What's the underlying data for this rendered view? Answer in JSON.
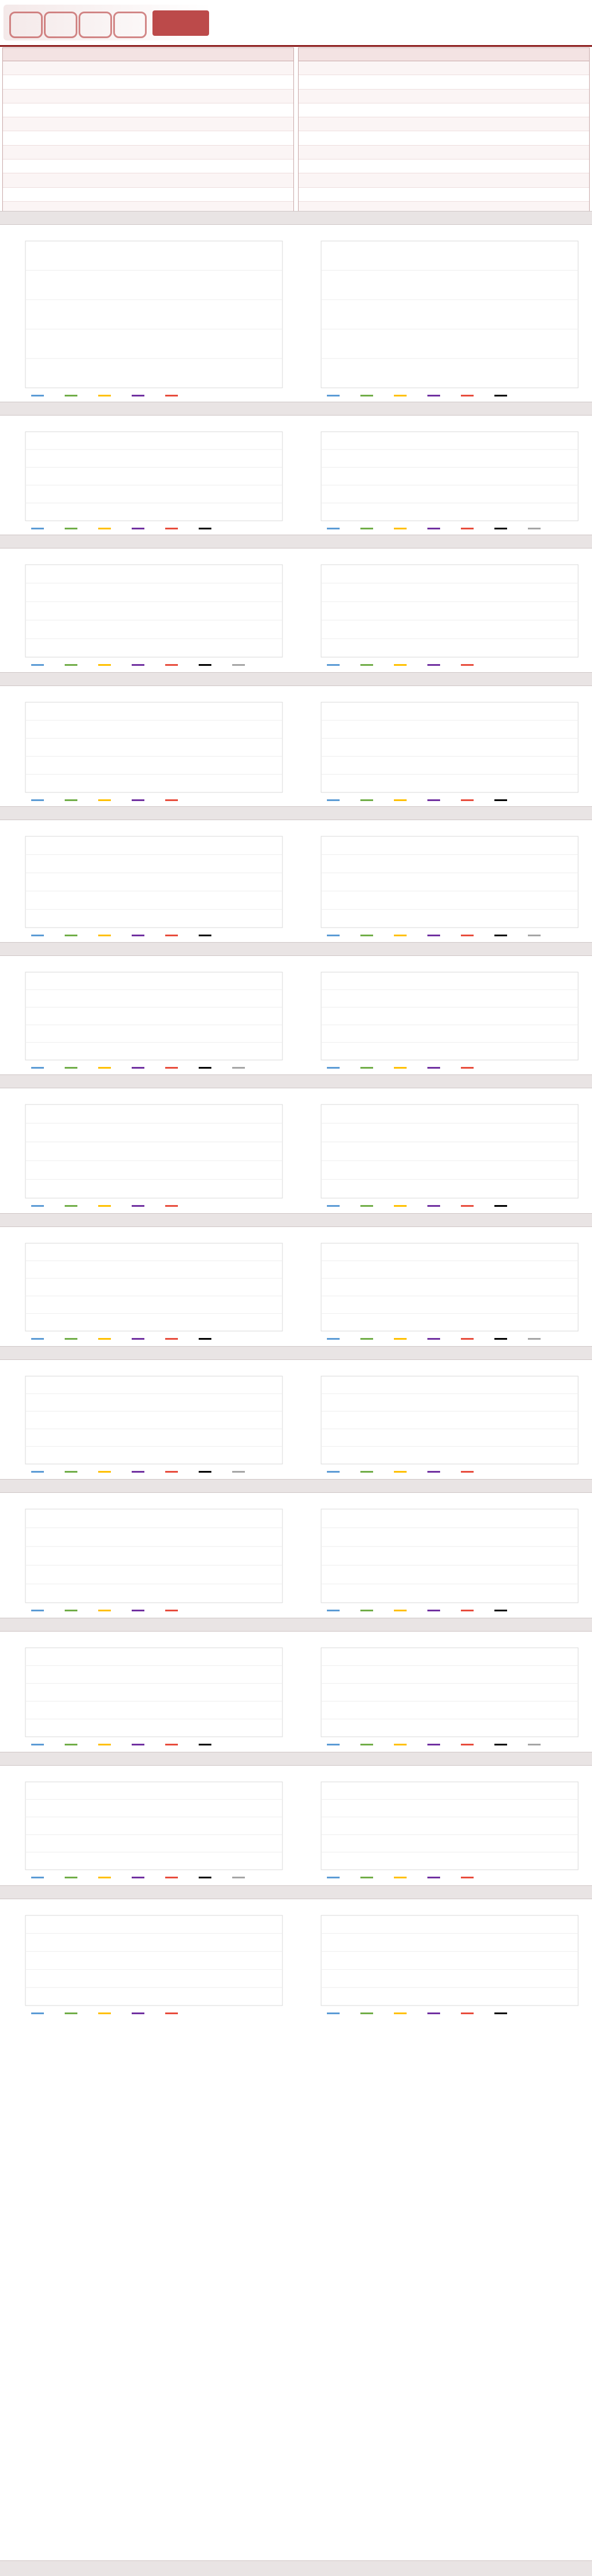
{
  "header": {
    "logo_text": "",
    "title": "",
    "date": ""
  },
  "table": {
    "left_headers": [],
    "right_headers": [],
    "left_rows": [],
    "right_rows": []
  },
  "footer": {
    "source_text": ""
  },
  "colors": {
    "brand": "#8b1a1a",
    "band": "#e9e4e4",
    "series": [
      "#5b9bd5",
      "#70ad47",
      "#ffc000",
      "#7030a0",
      "#e74c3c",
      "#000000",
      "#a5a5a5",
      "#ed7d31",
      "#4472c4",
      "#2e7d32"
    ]
  },
  "chart_data": []
}
